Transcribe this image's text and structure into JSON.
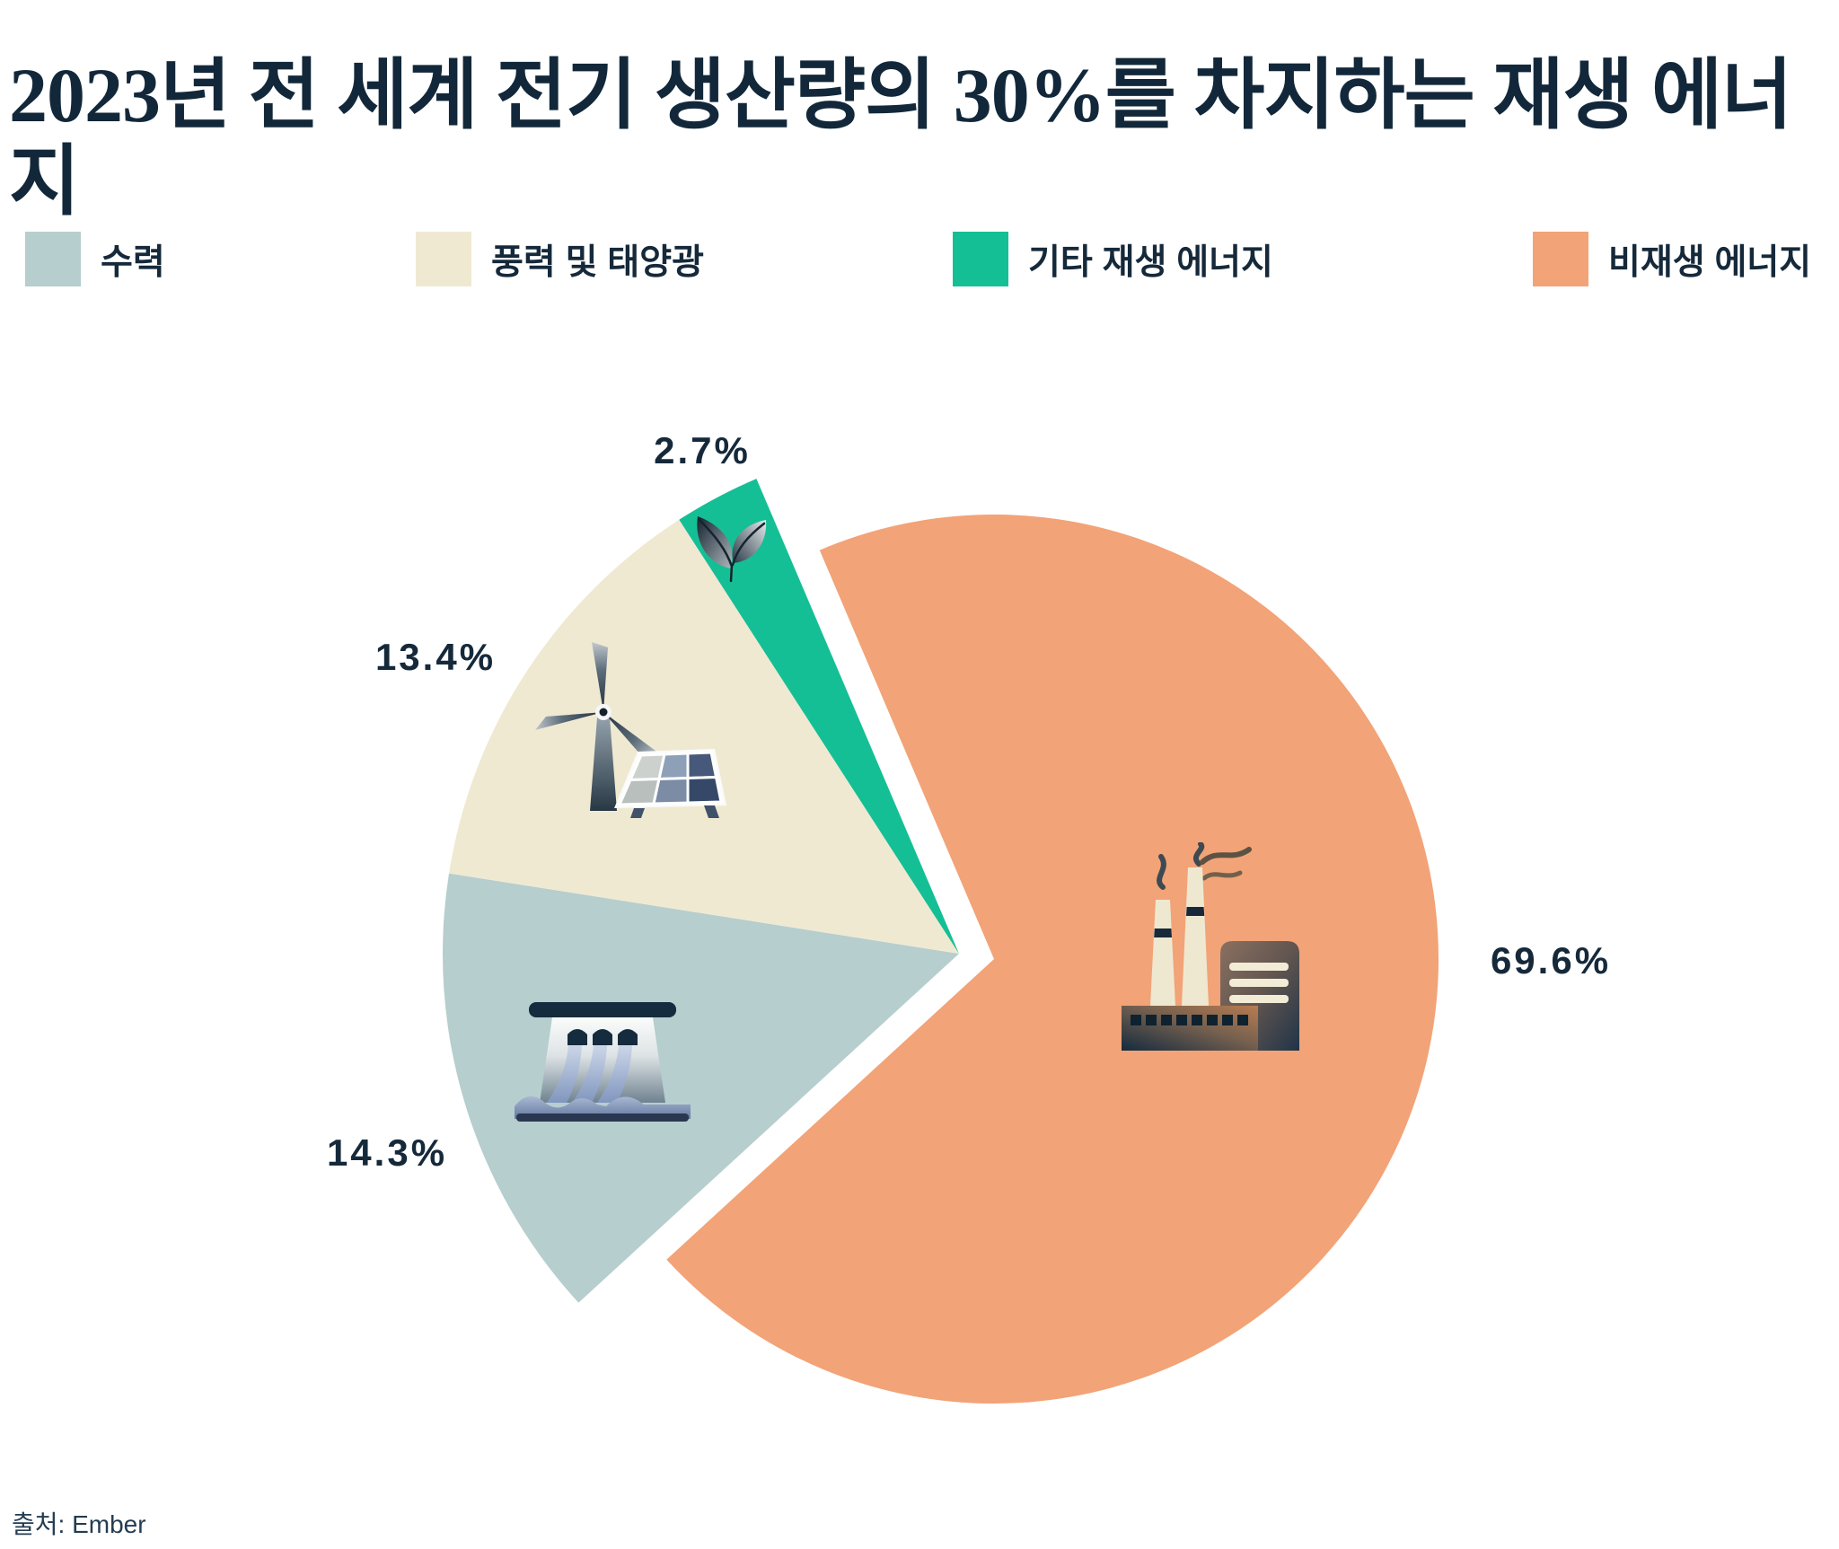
{
  "chart_data": {
    "type": "pie",
    "title": "2023년 전 세계 전기 생산량의 30%를 차지하는 재생 에너지",
    "source": "출처: Ember",
    "unit": "%",
    "legend_position": "top",
    "slices": [
      {
        "id": "non_renewable",
        "label": "비재생 에너지",
        "value": 69.6,
        "display_label": "69.6%",
        "color": "#f2a377",
        "group": "main",
        "icon": "factory"
      },
      {
        "id": "hydro",
        "label": "수력",
        "value": 14.3,
        "display_label": "14.3%",
        "color": "#b6cecd",
        "group": "exploded",
        "icon": "hydro-dam"
      },
      {
        "id": "wind_solar",
        "label": "풍력 및 태양광",
        "value": 13.4,
        "display_label": "13.4%",
        "color": "#f0e9d2",
        "group": "exploded",
        "icon": "wind-turbine-and-solar-panel"
      },
      {
        "id": "other_renewable",
        "label": "기타 재생 에너지",
        "value": 2.7,
        "display_label": "2.7%",
        "color": "#15bf95",
        "group": "exploded",
        "icon": "leaf"
      }
    ],
    "legend": {
      "position": "top",
      "items": [
        {
          "label": "수력",
          "slice_index": 1
        },
        {
          "label": "풍력 및 태양광",
          "slice_index": 2
        },
        {
          "label": "기타 재생 에너지",
          "slice_index": 3
        },
        {
          "label": "비재생 에너지",
          "slice_index": 0
        }
      ]
    },
    "colors": {
      "text_navy": "#15293a",
      "hydro": "#b6cecd",
      "wind_solar": "#f0e9d2",
      "other_renewable": "#15bf95",
      "non_renewable": "#f2a377"
    }
  }
}
